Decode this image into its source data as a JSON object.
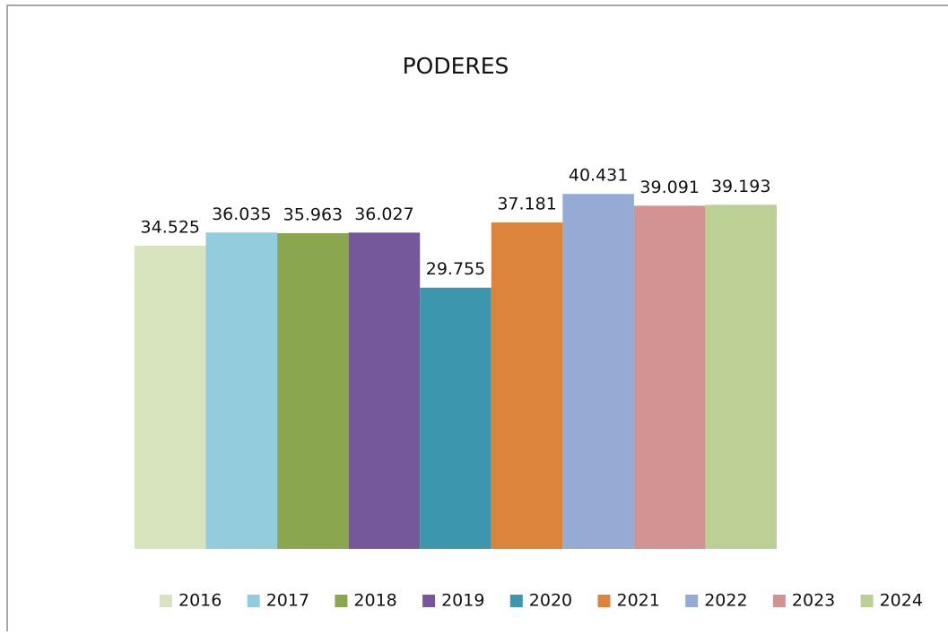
{
  "chart_data": {
    "type": "bar",
    "title": "PODERES",
    "series": [
      {
        "name": "2016",
        "color": "#d7e4bd",
        "values": [
          34.525
        ]
      },
      {
        "name": "2017",
        "color": "#93cddd",
        "values": [
          36.035
        ]
      },
      {
        "name": "2018",
        "color": "#8aa64f",
        "values": [
          35.963
        ]
      },
      {
        "name": "2019",
        "color": "#74589b",
        "values": [
          36.027
        ]
      },
      {
        "name": "2020",
        "color": "#3c97ae",
        "values": [
          29.755
        ]
      },
      {
        "name": "2021",
        "color": "#dd843c",
        "values": [
          37.181
        ]
      },
      {
        "name": "2022",
        "color": "#95abd4",
        "values": [
          40.431
        ]
      },
      {
        "name": "2023",
        "color": "#d49393",
        "values": [
          39.091
        ]
      },
      {
        "name": "2024",
        "color": "#bcd096",
        "values": [
          39.193
        ]
      }
    ],
    "ylim": [
      0,
      45
    ],
    "legend": "bottom"
  }
}
